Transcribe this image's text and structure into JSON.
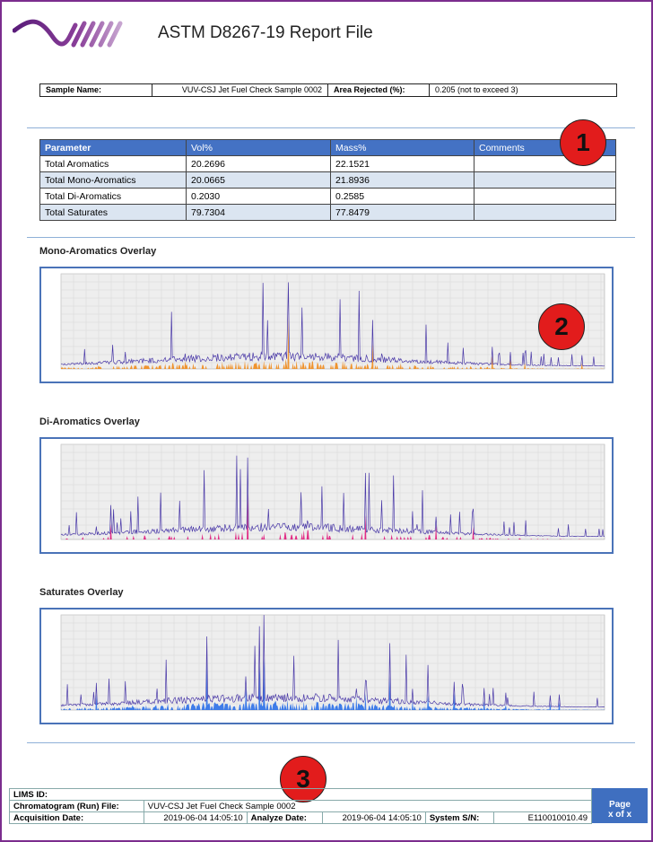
{
  "header": {
    "title": "ASTM D8267-19 Report File"
  },
  "sample": {
    "name_label": "Sample Name:",
    "name": "VUV-CSJ Jet Fuel Check Sample 0002",
    "rejected_label": "Area Rejected (%):",
    "rejected": "0.205 (not to exceed 3)"
  },
  "table": {
    "columns": [
      "Parameter",
      "Vol%",
      "Mass%",
      "Comments"
    ],
    "rows": [
      [
        "Total Aromatics",
        "20.2696",
        "22.1521"
      ],
      [
        "Total Mono-Aromatics",
        "20.0665",
        "21.8936"
      ],
      [
        "Total Di-Aromatics",
        "0.2030",
        "0.2585"
      ],
      [
        "Total Saturates",
        "79.7304",
        "77.8479"
      ]
    ]
  },
  "callouts": [
    "1",
    "2",
    "3"
  ],
  "charts": [
    {
      "title": "Mono-Aromatics Overlay"
    },
    {
      "title": "Di-Aromatics Overlay"
    },
    {
      "title": "Saturates Overlay"
    }
  ],
  "footer": {
    "lims_label": "LIMS ID:",
    "file_label": "Chromatogram (Run) File:",
    "file": "VUV-CSJ Jet Fuel Check Sample 0002",
    "acq_label": "Acquisition Date:",
    "acq": "2019-06-04 14:05:10",
    "analyze_label": "Analyze Date:",
    "analyze": "2019-06-04 14:05:10",
    "sn_label": "System S/N:",
    "sn": "E110010010.49",
    "page_label": "Page",
    "page": "x of x"
  }
}
